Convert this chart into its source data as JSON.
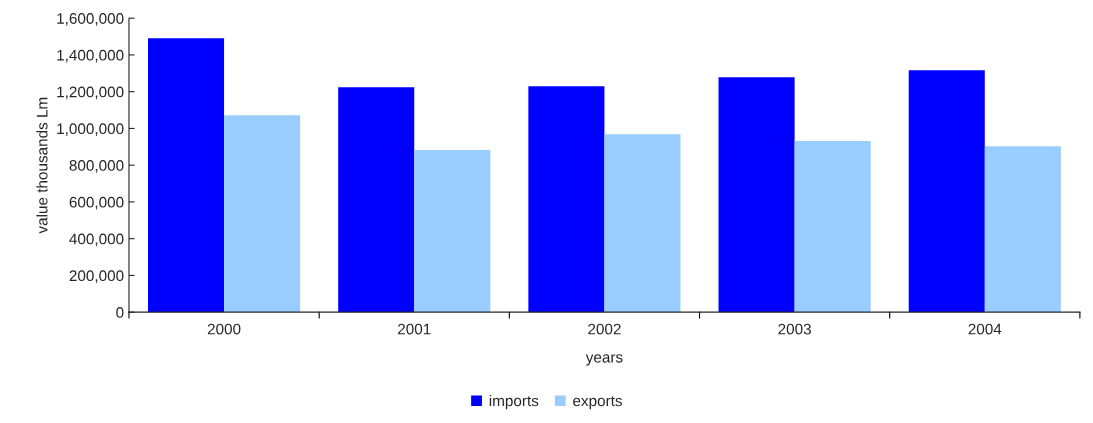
{
  "chart_data": {
    "type": "bar",
    "xlabel": "years",
    "ylabel": "value thousands Lm",
    "categories": [
      "2000",
      "2001",
      "2002",
      "2003",
      "2004"
    ],
    "series": [
      {
        "name": "imports",
        "color": "#0000ff",
        "values": [
          1491000,
          1224000,
          1230000,
          1279000,
          1317000
        ]
      },
      {
        "name": "exports",
        "color": "#99ccff",
        "values": [
          1072000,
          882000,
          969000,
          931000,
          903000
        ]
      }
    ],
    "ylim": [
      0,
      1600000
    ],
    "yticks": [
      {
        "value": 0,
        "label": "0"
      },
      {
        "value": 200000,
        "label": "200,000"
      },
      {
        "value": 400000,
        "label": "400,000"
      },
      {
        "value": 600000,
        "label": "600,000"
      },
      {
        "value": 800000,
        "label": "800,000"
      },
      {
        "value": 1000000,
        "label": "1,000,000"
      },
      {
        "value": 1200000,
        "label": "1,200,000"
      },
      {
        "value": 1400000,
        "label": "1,400,000"
      },
      {
        "value": 1600000,
        "label": "1,600,000"
      }
    ],
    "grid": false,
    "legend": "bottom"
  }
}
